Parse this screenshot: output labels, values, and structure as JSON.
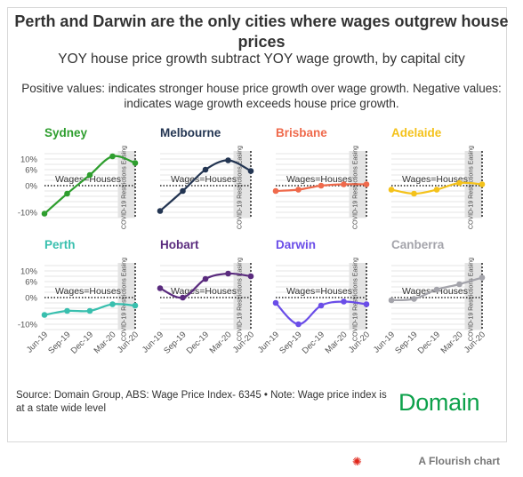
{
  "header": {
    "title": "Perth and Darwin are the only cities where wages outgrew house prices",
    "subtitle": "YOY house price growth subtract YOY wage growth, by capital city",
    "note": "Positive values: indicates stronger house price growth over wage growth. Negative values: indicates wage growth exceeds house price growth."
  },
  "footer": {
    "source": "Source: Domain Group, ABS: Wage Price Index- 6345 • Note: Wage price index is at a state wide level",
    "logo": "Domain",
    "credit": "A Flourish chart",
    "credit_icon": "flourish-logo-icon"
  },
  "chart_data": {
    "type": "line",
    "x": [
      "Jun-19",
      "Sep-19",
      "Dec-19",
      "Mar-20",
      "Jun-20"
    ],
    "ylim": [
      -12,
      13
    ],
    "yticks": [
      10,
      6,
      0,
      -10
    ],
    "ytick_labels": [
      "10%",
      "6%",
      "0%",
      "-10%"
    ],
    "grid": true,
    "reference_line": {
      "value": 0,
      "label": "Wages=Houses"
    },
    "band": {
      "from": "Mar-20",
      "to": "Jun-20",
      "label": "COVID-19 Restrictions Easing"
    },
    "panels": [
      {
        "name": "Sydney",
        "color": "#2e9e2e",
        "values": [
          -10.5,
          -3,
          4,
          11,
          8.5
        ]
      },
      {
        "name": "Melbourne",
        "color": "#233552",
        "values": [
          -9.5,
          -2,
          6,
          9.5,
          5.5
        ]
      },
      {
        "name": "Brisbane",
        "color": "#ef6a4c",
        "values": [
          -2,
          -1.5,
          0,
          0.5,
          0.5
        ]
      },
      {
        "name": "Adelaide",
        "color": "#f4c21b",
        "values": [
          -1.5,
          -3,
          -1.5,
          1,
          0.5
        ]
      },
      {
        "name": "Perth",
        "color": "#38bfae",
        "values": [
          -6.5,
          -5,
          -5,
          -2.5,
          -3
        ]
      },
      {
        "name": "Hobart",
        "color": "#5a2b7e",
        "values": [
          3.5,
          0,
          7,
          9,
          8
        ]
      },
      {
        "name": "Darwin",
        "color": "#6a4de8",
        "values": [
          -2,
          -10,
          -3,
          -1.5,
          -2.5
        ]
      },
      {
        "name": "Canberra",
        "color": "#a4a4ab",
        "values": [
          -1,
          -0.5,
          3,
          5,
          7.5
        ]
      }
    ]
  }
}
